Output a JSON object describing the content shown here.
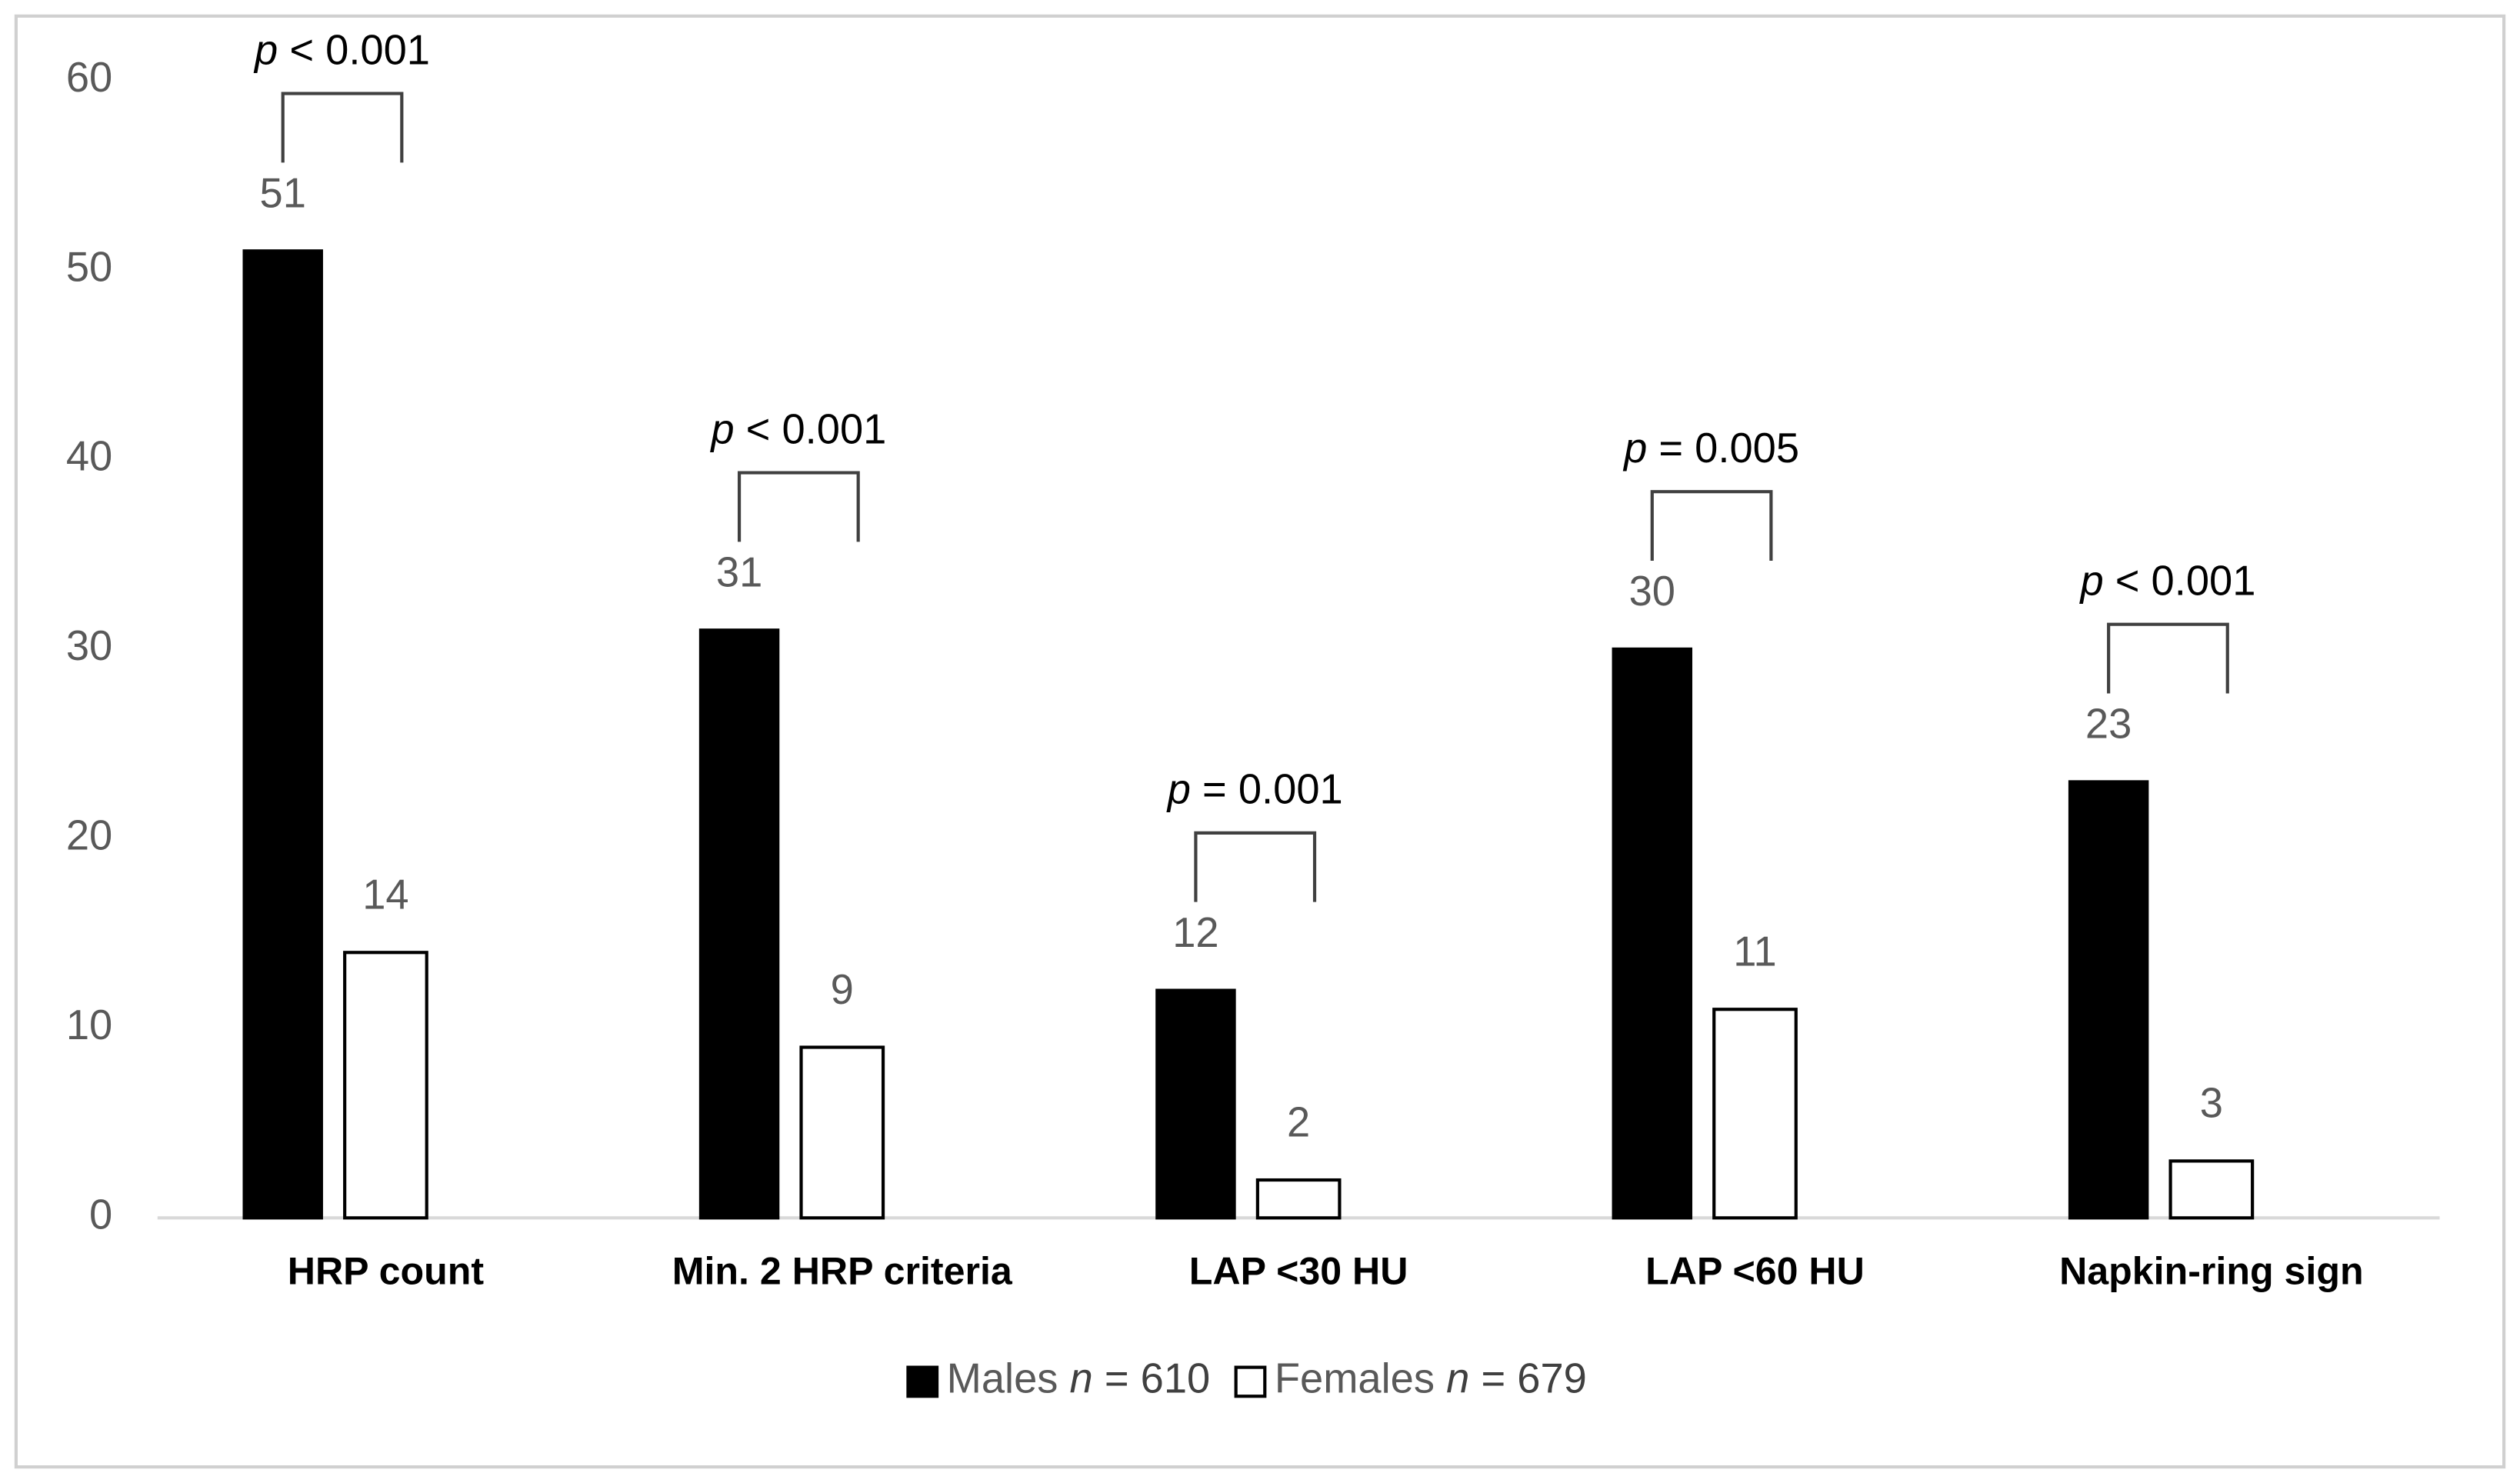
{
  "chart_data": {
    "type": "bar",
    "categories": [
      "HRP count",
      "Min. 2 HRP criteria",
      "LAP <30 HU",
      "LAP <60 HU",
      "Napkin-ring sign"
    ],
    "series": [
      {
        "name": "Males",
        "size_symbol": "n",
        "size_text": "= 610",
        "color": "#000000",
        "values": [
          51,
          31,
          12,
          30,
          23
        ]
      },
      {
        "name": "Females",
        "size_symbol": "n",
        "size_text": "= 679",
        "color": "#ffffff",
        "values": [
          14,
          9,
          2,
          11,
          3
        ]
      }
    ],
    "annotations": [
      {
        "symbol": "p",
        "text": "< 0.001"
      },
      {
        "symbol": "p",
        "text": "< 0.001"
      },
      {
        "symbol": "p",
        "text": "= 0.001"
      },
      {
        "symbol": "p",
        "text": "= 0.005"
      },
      {
        "symbol": "p",
        "text": "< 0.001"
      }
    ],
    "ylim": [
      0,
      60
    ],
    "yticks": [
      0,
      10,
      20,
      30,
      40,
      50,
      60
    ],
    "grid": false,
    "legend": "bottom"
  }
}
